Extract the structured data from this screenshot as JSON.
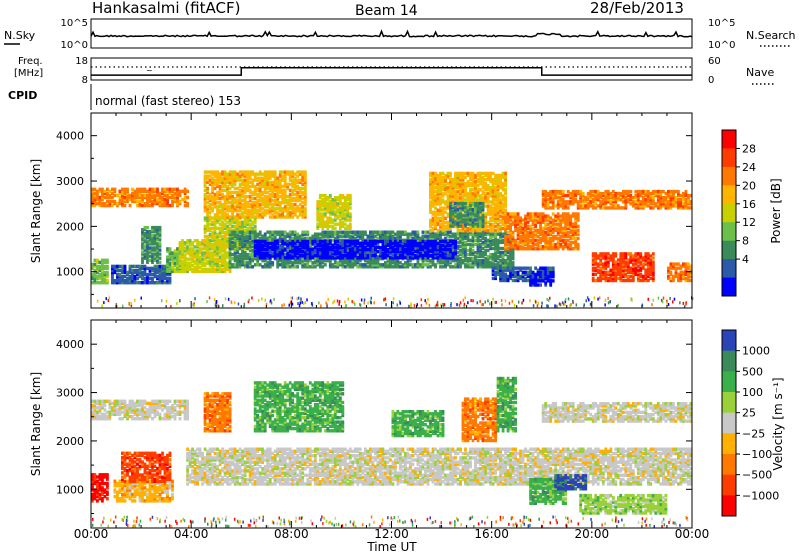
{
  "header": {
    "station": "Hankasalmi (fitACF)",
    "beam": "Beam 14",
    "date": "28/Feb/2013"
  },
  "noise_panel": {
    "left_label": "N.Sky",
    "right_label": "N.Search",
    "left_ticks": [
      "10^5",
      "10^0"
    ],
    "right_ticks": [
      "10^5",
      "10^0"
    ]
  },
  "freq_panel": {
    "left_label_1": "Freq.",
    "left_label_2": "[MHz]",
    "right_label": "Nave",
    "left_ticks": [
      "18",
      "8"
    ],
    "right_ticks": [
      "60",
      "0"
    ],
    "step_segments": [
      {
        "t0": 0.0,
        "t1": 6.0,
        "value": 4
      },
      {
        "t0": 6.0,
        "t1": 18.0,
        "value": 10
      },
      {
        "t0": 18.0,
        "t1": 24.0,
        "value": 4
      }
    ]
  },
  "cpid": {
    "label": "CPID",
    "text": "normal (fast stereo) 153"
  },
  "x_axis": {
    "label": "Time UT",
    "ticks": [
      "00:00",
      "04:00",
      "08:00",
      "12:00",
      "16:00",
      "20:00",
      "00:00"
    ]
  },
  "power_colorbar": {
    "label": "Power [dB]",
    "ticks": [
      "28",
      "24",
      "20",
      "16",
      "12",
      "8",
      "4"
    ],
    "colors": [
      "#ff0000",
      "#ff3c00",
      "#ff7800",
      "#ffb400",
      "#c8d000",
      "#6cc04a",
      "#3a8a5a",
      "#2a5aa8",
      "#0000ff"
    ]
  },
  "velocity_colorbar": {
    "label": "Velocity [m s⁻¹]",
    "ticks": [
      "1000",
      "500",
      "100",
      "25",
      "−25",
      "−100",
      "−500",
      "−1000"
    ],
    "colors": [
      "#2a44b8",
      "#3a8a5a",
      "#3ab04a",
      "#9ad03a",
      "#c8c8c8",
      "#ffb000",
      "#ff7800",
      "#ff3c00",
      "#ff0000"
    ]
  },
  "chart_data": [
    {
      "type": "heatmap",
      "title": "Power",
      "xlabel": "Time UT",
      "ylabel": "Slant Range [km]",
      "xlim": [
        0,
        24
      ],
      "ylim": [
        200,
        4500
      ],
      "yticks": [
        1000,
        2000,
        3000,
        4000
      ],
      "colorbar_label": "Power [dB]",
      "regions": [
        {
          "t0": 0.0,
          "t1": 3.9,
          "r0": 2450,
          "r1": 2850,
          "cls": 2
        },
        {
          "t0": 0.0,
          "t1": 0.7,
          "r0": 750,
          "r1": 1250,
          "cls": 5
        },
        {
          "t0": 0.8,
          "t1": 3.2,
          "r0": 750,
          "r1": 1150,
          "cls": 7
        },
        {
          "t0": 2.0,
          "t1": 2.8,
          "r0": 1200,
          "r1": 2000,
          "cls": 6
        },
        {
          "t0": 3.0,
          "t1": 3.8,
          "r0": 1000,
          "r1": 1500,
          "cls": 5
        },
        {
          "t0": 3.5,
          "t1": 5.5,
          "r0": 1000,
          "r1": 1700,
          "cls": 4
        },
        {
          "t0": 4.5,
          "t1": 6.5,
          "r0": 1500,
          "r1": 2200,
          "cls": 4
        },
        {
          "t0": 4.5,
          "t1": 8.5,
          "r0": 2200,
          "r1": 3200,
          "cls": 3
        },
        {
          "t0": 5.5,
          "t1": 16.8,
          "r0": 1100,
          "r1": 1900,
          "cls": 6
        },
        {
          "t0": 6.5,
          "t1": 14.5,
          "r0": 1300,
          "r1": 1700,
          "cls": 8
        },
        {
          "t0": 9.0,
          "t1": 10.3,
          "r0": 1950,
          "r1": 2700,
          "cls": 4
        },
        {
          "t0": 13.5,
          "t1": 16.5,
          "r0": 1900,
          "r1": 3200,
          "cls": 3
        },
        {
          "t0": 14.3,
          "t1": 15.6,
          "r0": 2000,
          "r1": 2500,
          "cls": 6
        },
        {
          "t0": 16.0,
          "t1": 18.5,
          "r0": 800,
          "r1": 1100,
          "cls": 7
        },
        {
          "t0": 17.5,
          "t1": 18.5,
          "r0": 700,
          "r1": 1000,
          "cls": 8
        },
        {
          "t0": 16.5,
          "t1": 19.5,
          "r0": 1500,
          "r1": 2300,
          "cls": 2
        },
        {
          "t0": 18.0,
          "t1": 24.0,
          "r0": 2400,
          "r1": 2800,
          "cls": 2
        },
        {
          "t0": 20.0,
          "t1": 22.5,
          "r0": 800,
          "r1": 1400,
          "cls": 1
        },
        {
          "t0": 23.0,
          "t1": 24.0,
          "r0": 800,
          "r1": 1200,
          "cls": 2
        }
      ]
    },
    {
      "type": "heatmap",
      "title": "Velocity",
      "xlabel": "Time UT",
      "ylabel": "Slant Range [km]",
      "xlim": [
        0,
        24
      ],
      "ylim": [
        200,
        4500
      ],
      "yticks": [
        1000,
        2000,
        3000,
        4000
      ],
      "colorbar_label": "Velocity [m s⁻¹]",
      "regions": [
        {
          "t0": 0.0,
          "t1": 3.9,
          "r0": 2450,
          "r1": 2850,
          "cls": 4
        },
        {
          "t0": 3.8,
          "t1": 24.0,
          "r0": 1100,
          "r1": 1850,
          "cls": 4
        },
        {
          "t0": 18.0,
          "t1": 24.0,
          "r0": 2400,
          "r1": 2800,
          "cls": 4
        },
        {
          "t0": 0.0,
          "t1": 0.7,
          "r0": 750,
          "r1": 1300,
          "cls": 8
        },
        {
          "t0": 0.9,
          "t1": 3.3,
          "r0": 750,
          "r1": 1200,
          "cls": 5
        },
        {
          "t0": 1.2,
          "t1": 3.2,
          "r0": 1150,
          "r1": 1750,
          "cls": 7
        },
        {
          "t0": 4.5,
          "t1": 5.5,
          "r0": 2200,
          "r1": 3000,
          "cls": 6
        },
        {
          "t0": 6.5,
          "t1": 10.0,
          "r0": 2200,
          "r1": 3200,
          "cls": 2
        },
        {
          "t0": 12.0,
          "t1": 14.0,
          "r0": 2100,
          "r1": 2600,
          "cls": 2
        },
        {
          "t0": 14.8,
          "t1": 16.2,
          "r0": 2000,
          "r1": 2900,
          "cls": 6
        },
        {
          "t0": 16.2,
          "t1": 17.0,
          "r0": 2200,
          "r1": 3300,
          "cls": 2
        },
        {
          "t0": 17.5,
          "t1": 19.0,
          "r0": 700,
          "r1": 1200,
          "cls": 2
        },
        {
          "t0": 18.5,
          "t1": 19.8,
          "r0": 1000,
          "r1": 1300,
          "cls": 0
        },
        {
          "t0": 19.5,
          "t1": 23.0,
          "r0": 500,
          "r1": 900,
          "cls": 3
        }
      ]
    }
  ]
}
